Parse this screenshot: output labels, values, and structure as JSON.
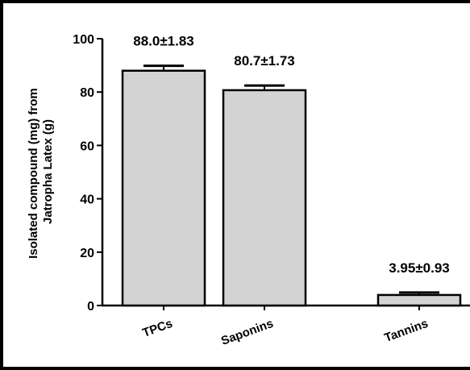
{
  "chart_data": {
    "type": "bar",
    "title": "",
    "xlabel": "",
    "ylabel": "Isolated compound (mg) from Jatropha Latex (g)",
    "ylabel_lines": [
      "Isolated compound (mg) from",
      "Jatropha Latex (g)"
    ],
    "categories": [
      "TPCs",
      "Saponins",
      "Tannins"
    ],
    "values": [
      88.0,
      80.7,
      3.95
    ],
    "errors": [
      1.83,
      1.73,
      0.93
    ],
    "data_labels": [
      "88.0±1.83",
      "80.7±1.73",
      "3.95±0.93"
    ],
    "ylim": [
      0,
      100
    ],
    "yticks": [
      0,
      20,
      40,
      60,
      80,
      100
    ],
    "grid": false,
    "bar_color": "#d3d3d3",
    "edge_color": "#000000"
  }
}
